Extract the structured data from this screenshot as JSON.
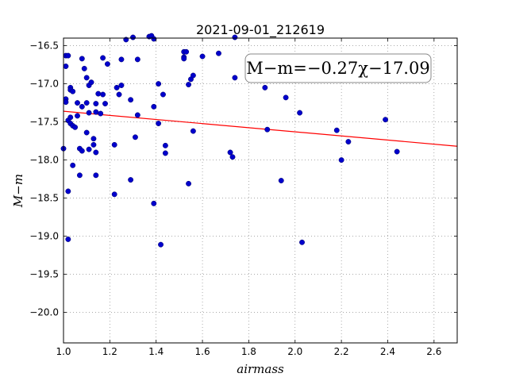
{
  "chart_data": {
    "type": "scatter",
    "title": "2021-09-01_212619",
    "xlabel": "airmass",
    "ylabel": "M−m",
    "xlim": [
      1.0,
      2.7
    ],
    "ylim": [
      -20.4,
      -16.4
    ],
    "y_inverted": true,
    "grid": true,
    "x_ticks": [
      "1.0",
      "1.2",
      "1.4",
      "1.6",
      "1.8",
      "2.0",
      "2.2",
      "2.4",
      "2.6"
    ],
    "y_ticks": [
      "−16.5",
      "−17.0",
      "−17.5",
      "−18.0",
      "−18.5",
      "−19.0",
      "−19.5",
      "−20.0"
    ],
    "annotation": "M−m=−0.27χ−17.09",
    "fit": {
      "slope": -0.27,
      "intercept": -17.09,
      "color": "#ff0000"
    },
    "point_color": "#0000cc",
    "points": [
      [
        1.0,
        -17.85
      ],
      [
        1.01,
        -16.63
      ],
      [
        1.01,
        -16.77
      ],
      [
        1.01,
        -17.2
      ],
      [
        1.01,
        -17.24
      ],
      [
        1.02,
        -16.63
      ],
      [
        1.02,
        -17.48
      ],
      [
        1.02,
        -18.41
      ],
      [
        1.02,
        -19.04
      ],
      [
        1.03,
        -17.05
      ],
      [
        1.03,
        -17.08
      ],
      [
        1.03,
        -17.44
      ],
      [
        1.03,
        -17.52
      ],
      [
        1.04,
        -17.1
      ],
      [
        1.04,
        -17.55
      ],
      [
        1.04,
        -18.07
      ],
      [
        1.05,
        -17.57
      ],
      [
        1.06,
        -17.25
      ],
      [
        1.06,
        -17.42
      ],
      [
        1.07,
        -18.2
      ],
      [
        1.07,
        -17.85
      ],
      [
        1.08,
        -16.67
      ],
      [
        1.08,
        -17.3
      ],
      [
        1.08,
        -17.88
      ],
      [
        1.09,
        -16.8
      ],
      [
        1.1,
        -17.25
      ],
      [
        1.1,
        -16.92
      ],
      [
        1.1,
        -17.64
      ],
      [
        1.11,
        -17.02
      ],
      [
        1.11,
        -17.86
      ],
      [
        1.11,
        -17.38
      ],
      [
        1.12,
        -16.98
      ],
      [
        1.13,
        -17.72
      ],
      [
        1.13,
        -17.8
      ],
      [
        1.14,
        -17.26
      ],
      [
        1.14,
        -17.37
      ],
      [
        1.14,
        -18.2
      ],
      [
        1.14,
        -17.9
      ],
      [
        1.15,
        -17.13
      ],
      [
        1.16,
        -17.39
      ],
      [
        1.17,
        -16.66
      ],
      [
        1.17,
        -17.14
      ],
      [
        1.18,
        -17.26
      ],
      [
        1.19,
        -16.74
      ],
      [
        1.22,
        -17.8
      ],
      [
        1.22,
        -18.45
      ],
      [
        1.23,
        -17.05
      ],
      [
        1.24,
        -17.14
      ],
      [
        1.25,
        -16.68
      ],
      [
        1.25,
        -17.02
      ],
      [
        1.27,
        -16.42
      ],
      [
        1.29,
        -17.21
      ],
      [
        1.29,
        -18.26
      ],
      [
        1.3,
        -16.39
      ],
      [
        1.31,
        -17.7
      ],
      [
        1.32,
        -16.68
      ],
      [
        1.32,
        -17.41
      ],
      [
        1.37,
        -16.38
      ],
      [
        1.38,
        -16.37
      ],
      [
        1.39,
        -16.41
      ],
      [
        1.39,
        -17.3
      ],
      [
        1.39,
        -18.57
      ],
      [
        1.41,
        -17.0
      ],
      [
        1.41,
        -17.52
      ],
      [
        1.42,
        -19.11
      ],
      [
        1.43,
        -17.14
      ],
      [
        1.44,
        -17.91
      ],
      [
        1.44,
        -17.81
      ],
      [
        1.52,
        -16.58
      ],
      [
        1.52,
        -16.65
      ],
      [
        1.52,
        -16.67
      ],
      [
        1.53,
        -16.58
      ],
      [
        1.54,
        -17.01
      ],
      [
        1.54,
        -18.31
      ],
      [
        1.55,
        -16.94
      ],
      [
        1.56,
        -16.89
      ],
      [
        1.56,
        -17.62
      ],
      [
        1.6,
        -16.64
      ],
      [
        1.67,
        -16.6
      ],
      [
        1.72,
        -17.9
      ],
      [
        1.73,
        -17.96
      ],
      [
        1.74,
        -16.39
      ],
      [
        1.74,
        -16.92
      ],
      [
        1.87,
        -17.05
      ],
      [
        1.88,
        -17.6
      ],
      [
        1.94,
        -18.27
      ],
      [
        1.96,
        -17.18
      ],
      [
        2.02,
        -17.38
      ],
      [
        2.03,
        -19.08
      ],
      [
        2.18,
        -17.61
      ],
      [
        2.2,
        -18.0
      ],
      [
        2.23,
        -17.76
      ],
      [
        2.39,
        -17.47
      ],
      [
        2.44,
        -17.89
      ]
    ]
  }
}
